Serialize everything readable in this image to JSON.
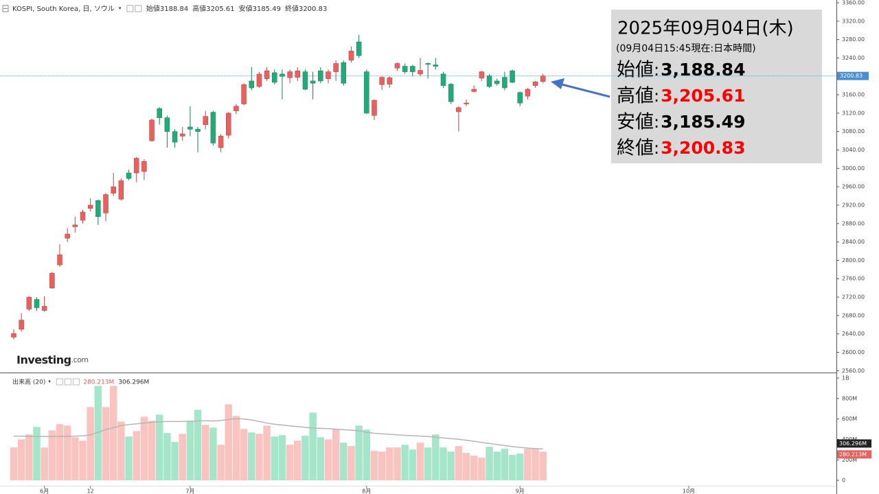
{
  "chart_data": {
    "type": "candlestick",
    "title": "KOSPI, South Korea, 日, ソウル",
    "ohlc_names": [
      "始値",
      "高値",
      "安値",
      "終値"
    ],
    "watermark": [
      "Investing",
      ".com"
    ],
    "up_color": "#e8615e",
    "down_color": "#22ab79",
    "last_color": "#4a8fd6",
    "xlim": [
      -1.79,
      107.25
    ],
    "xticks": [
      {
        "value": 4,
        "label": "6月"
      },
      {
        "value": 10,
        "label": "12"
      },
      {
        "value": 23,
        "label": "7月"
      },
      {
        "value": 46,
        "label": "8月"
      },
      {
        "value": 66,
        "label": "9月"
      },
      {
        "value": 88,
        "label": "10月"
      }
    ],
    "ylim": [
      2556,
      3366
    ],
    "yticks": [
      {
        "value": 2560,
        "label": "2560.00"
      },
      {
        "value": 2600,
        "label": "2600.00"
      },
      {
        "value": 2640,
        "label": "2640.00"
      },
      {
        "value": 2680,
        "label": "2680.00"
      },
      {
        "value": 2720,
        "label": "2720.00"
      },
      {
        "value": 2760,
        "label": "2760.00"
      },
      {
        "value": 2800,
        "label": "2800.00"
      },
      {
        "value": 2840,
        "label": "2840.00"
      },
      {
        "value": 2880,
        "label": "2880.00"
      },
      {
        "value": 2920,
        "label": "2920.00"
      },
      {
        "value": 2960,
        "label": "2960.00"
      },
      {
        "value": 3000,
        "label": "3000.00"
      },
      {
        "value": 3040,
        "label": "3040.00"
      },
      {
        "value": 3080,
        "label": "3080.00"
      },
      {
        "value": 3120,
        "label": "3120.00"
      },
      {
        "value": 3160,
        "label": "3160.00"
      },
      {
        "value": 3200,
        "label": "3200.00"
      },
      {
        "value": 3240,
        "label": "3240.00"
      },
      {
        "value": 3280,
        "label": "3280.00"
      },
      {
        "value": 3320,
        "label": "3320.00"
      },
      {
        "value": 3360,
        "label": "3360.00"
      }
    ],
    "open": [
      2633,
      2650,
      2694,
      2715,
      2691,
      2740,
      2790,
      2848,
      2873,
      2887,
      2913,
      2930,
      2903,
      2946,
      2933,
      2990,
      2990,
      2993,
      3060,
      3130,
      3110,
      3080,
      3070,
      3090,
      3085,
      3095,
      3122,
      3045,
      3072,
      3125,
      3140,
      3190,
      3178,
      3195,
      3208,
      3205,
      3197,
      3198,
      3210,
      3190,
      3212,
      3195,
      3210,
      3230,
      3235,
      3275,
      3210,
      3115,
      3182,
      3183,
      3218,
      3222,
      3222,
      3205,
      3228,
      3225,
      3205,
      3183,
      3123,
      3140,
      3167,
      3196,
      3201,
      3190,
      3198,
      3212,
      3165,
      3157,
      3180,
      3188.84
    ],
    "high": [
      2650,
      2685,
      2722,
      2720,
      2722,
      2775,
      2835,
      2870,
      2895,
      2910,
      2935,
      2932,
      2946,
      2990,
      2978,
      2997,
      3025,
      3020,
      3108,
      3133,
      3115,
      3085,
      3090,
      3135,
      3090,
      3125,
      3125,
      3075,
      3122,
      3140,
      3185,
      3220,
      3210,
      3220,
      3215,
      3215,
      3215,
      3220,
      3215,
      3210,
      3220,
      3215,
      3235,
      3235,
      3265,
      3290,
      3215,
      3150,
      3200,
      3200,
      3230,
      3228,
      3225,
      3240,
      3230,
      3240,
      3210,
      3185,
      3135,
      3150,
      3180,
      3212,
      3205,
      3195,
      3210,
      3215,
      3167,
      3175,
      3190,
      3205.61
    ],
    "low": [
      2628,
      2645,
      2690,
      2690,
      2688,
      2738,
      2786,
      2840,
      2860,
      2880,
      2906,
      2877,
      2885,
      2940,
      2930,
      2974,
      2970,
      2975,
      3058,
      3095,
      3045,
      3045,
      3060,
      3070,
      3035,
      3085,
      3050,
      3035,
      3065,
      3118,
      3137,
      3170,
      3175,
      3190,
      3182,
      3150,
      3185,
      3190,
      3170,
      3150,
      3185,
      3185,
      3190,
      3180,
      3230,
      3240,
      3118,
      3105,
      3170,
      3175,
      3212,
      3205,
      3200,
      3200,
      3195,
      3215,
      3175,
      3140,
      3080,
      3135,
      3165,
      3190,
      3175,
      3180,
      3170,
      3185,
      3135,
      3150,
      3175,
      3185.49
    ],
    "close": [
      2641,
      2670,
      2720,
      2697,
      2700,
      2772,
      2812,
      2857,
      2877,
      2905,
      2920,
      2895,
      2943,
      2960,
      2973,
      2978,
      3022,
      3015,
      3105,
      3110,
      3080,
      3057,
      3075,
      3085,
      3080,
      3113,
      3055,
      3070,
      3120,
      3135,
      3182,
      3175,
      3205,
      3212,
      3187,
      3200,
      3210,
      3212,
      3172,
      3185,
      3190,
      3210,
      3228,
      3185,
      3255,
      3245,
      3120,
      3148,
      3198,
      3197,
      3228,
      3210,
      3210,
      3213,
      3226,
      3222,
      3180,
      3145,
      3132,
      3142,
      3172,
      3210,
      3178,
      3184,
      3175,
      3187,
      3142,
      3172,
      3188,
      3200.83
    ],
    "volume": {
      "name": "出来高 (20)",
      "up_color": "#f9c3c0",
      "down_color": "#a5e6cb",
      "ma_color": "#b5b5b5",
      "ylim": [
        -80,
        1040
      ],
      "yticks": [
        0,
        {
          "value": 200,
          "label": "200M"
        },
        {
          "value": 400,
          "label": "400M"
        },
        {
          "value": 600,
          "label": "600M"
        },
        {
          "value": 800,
          "label": "800M"
        },
        {
          "value": 1000,
          "label": "1B"
        }
      ],
      "values": [
        321,
        400,
        448,
        522,
        321,
        488,
        549,
        535,
        421,
        388,
        716,
        923,
        716,
        923,
        575,
        428,
        482,
        622,
        582,
        642,
        462,
        375,
        455,
        575,
        689,
        542,
        515,
        348,
        743,
        629,
        502,
        468,
        455,
        535,
        428,
        442,
        348,
        388,
        435,
        662,
        421,
        400,
        502,
        368,
        335,
        535,
        495,
        288,
        281,
        321,
        321,
        348,
        301,
        368,
        321,
        448,
        321,
        281,
        335,
        268,
        241,
        221,
        328,
        281,
        308,
        248,
        261,
        308,
        308,
        280.213
      ],
      "ma": [
        432,
        432,
        430,
        430,
        428,
        428,
        430,
        430,
        432,
        435,
        445,
        470,
        495,
        515,
        535,
        545,
        552,
        560,
        568,
        572,
        575,
        575,
        575,
        578,
        580,
        582,
        580,
        585,
        595,
        602,
        600,
        590,
        575,
        560,
        548,
        540,
        532,
        525,
        518,
        512,
        508,
        505,
        500,
        495,
        490,
        485,
        470,
        460,
        455,
        450,
        445,
        440,
        436,
        432,
        428,
        422,
        415,
        408,
        401,
        392,
        382,
        370,
        360,
        350,
        340,
        330,
        322,
        315,
        310,
        306.296
      ],
      "last_label": "280.213M",
      "ma_label": "306.296M"
    }
  },
  "info": {
    "date": "2025年09月04日(木)",
    "note": "(09月04日15:45現在:日本時間)",
    "separator": ":",
    "rows": [
      {
        "label": "始値",
        "value": "3,188.84",
        "color": "#000000"
      },
      {
        "label": "高値",
        "value": "3,205.61",
        "color": "#ff0000"
      },
      {
        "label": "安値",
        "value": "3,185.49",
        "color": "#000000"
      },
      {
        "label": "終値",
        "value": "3,200.83",
        "color": "#ff0000"
      }
    ]
  }
}
